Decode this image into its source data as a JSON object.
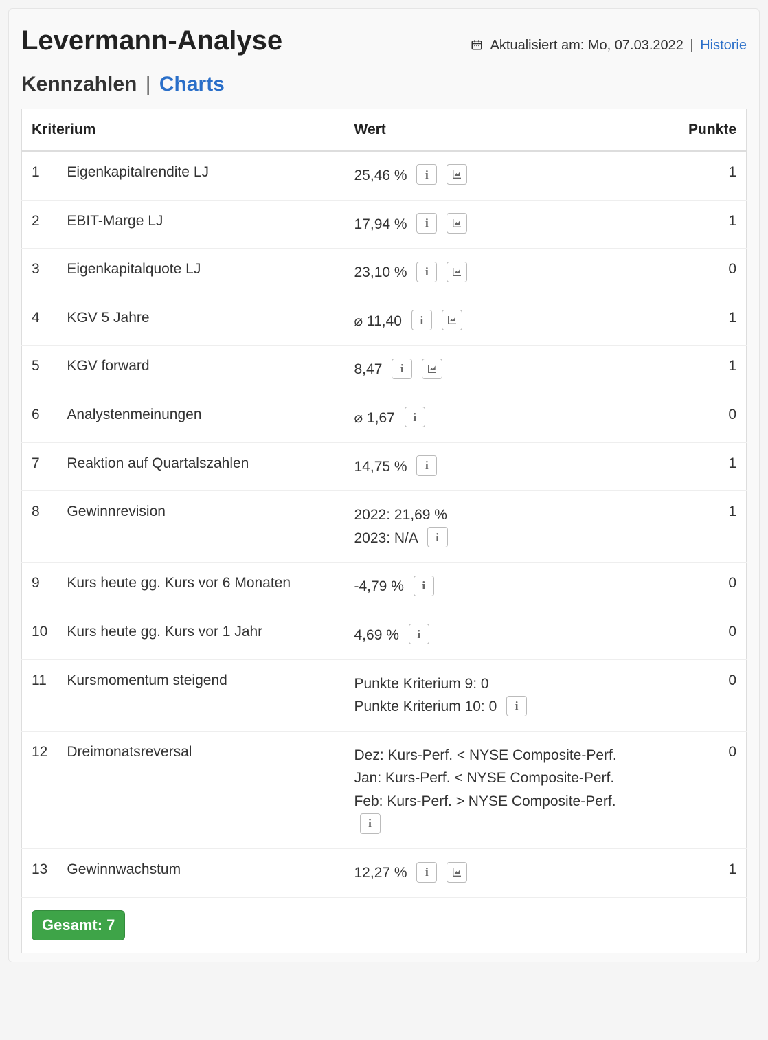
{
  "header": {
    "title": "Levermann-Analyse",
    "updated_label": "Aktualisiert am:",
    "updated_value": "Mo, 07.03.2022",
    "history_link": "Historie"
  },
  "tabs": {
    "active": "Kennzahlen",
    "inactive": "Charts"
  },
  "columns": {
    "criterion": "Kriterium",
    "value": "Wert",
    "points": "Punkte"
  },
  "rows": [
    {
      "n": "1",
      "criterion": "Eigenkapitalrendite LJ",
      "value": "25,46 %",
      "info": true,
      "chart": true,
      "points": "1"
    },
    {
      "n": "2",
      "criterion": "EBIT-Marge LJ",
      "value": "17,94 %",
      "info": true,
      "chart": true,
      "points": "1"
    },
    {
      "n": "3",
      "criterion": "Eigenkapitalquote LJ",
      "value": "23,10 %",
      "info": true,
      "chart": true,
      "points": "0"
    },
    {
      "n": "4",
      "criterion": "KGV 5 Jahre",
      "value": "⌀ 11,40",
      "info": true,
      "chart": true,
      "points": "1"
    },
    {
      "n": "5",
      "criterion": "KGV forward",
      "value": "8,47",
      "info": true,
      "chart": true,
      "points": "1"
    },
    {
      "n": "6",
      "criterion": "Analystenmeinungen",
      "value": "⌀ 1,67",
      "info": true,
      "chart": false,
      "points": "0"
    },
    {
      "n": "7",
      "criterion": "Reaktion auf Quartalszahlen",
      "value": "14,75 %",
      "info": true,
      "chart": false,
      "points": "1"
    },
    {
      "n": "8",
      "criterion": "Gewinnrevision",
      "lines": [
        "2022: 21,69 %",
        "2023: N/A"
      ],
      "info_trailing": true,
      "points": "1"
    },
    {
      "n": "9",
      "criterion": "Kurs heute gg. Kurs vor 6 Monaten",
      "value": "-4,79 %",
      "info": true,
      "chart": false,
      "points": "0"
    },
    {
      "n": "10",
      "criterion": "Kurs heute gg. Kurs vor 1 Jahr",
      "value": "4,69 %",
      "info": true,
      "chart": false,
      "points": "0"
    },
    {
      "n": "11",
      "criterion": "Kursmomentum steigend",
      "lines": [
        "Punkte Kriterium 9: 0",
        "Punkte Kriterium 10: 0"
      ],
      "info_trailing": true,
      "points": "0"
    },
    {
      "n": "12",
      "criterion": "Dreimonatsreversal",
      "lines": [
        "Dez: Kurs-Perf. < NYSE Composite-Perf.",
        "Jan: Kurs-Perf. < NYSE Composite-Perf.",
        "Feb: Kurs-Perf. > NYSE Composite-Perf."
      ],
      "info_below": true,
      "points": "0"
    },
    {
      "n": "13",
      "criterion": "Gewinnwachstum",
      "value": "12,27 %",
      "info": true,
      "chart": true,
      "points": "1"
    }
  ],
  "total": {
    "label": "Gesamt:",
    "value": "7"
  },
  "colors": {
    "link": "#2A6FC9",
    "badge_bg": "#3EA448",
    "badge_text": "#ffffff",
    "border": "#dddddd"
  }
}
